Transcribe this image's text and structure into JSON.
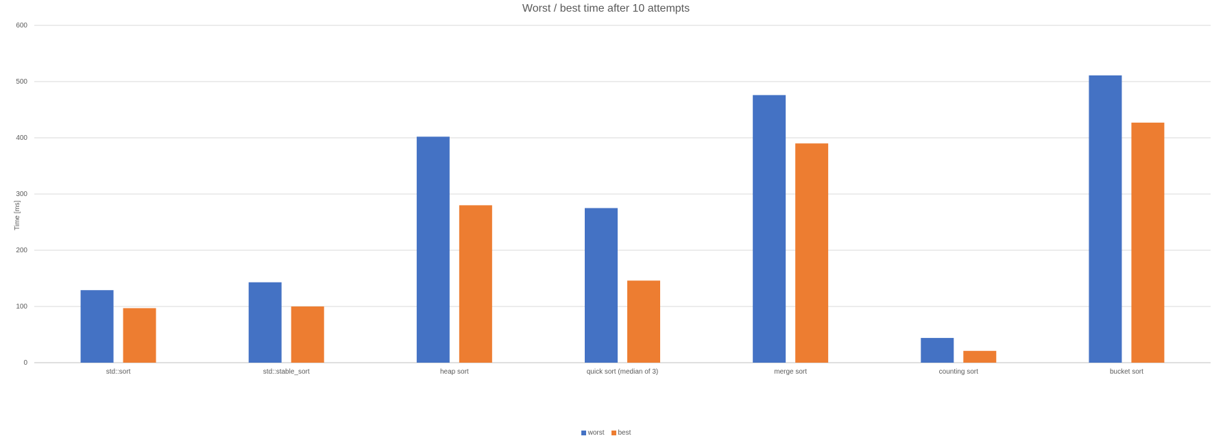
{
  "chart_data": {
    "type": "bar",
    "title": "Worst / best time after 10 attempts",
    "ylabel": "Time [ms]",
    "xlabel": "",
    "ylim": [
      0,
      600
    ],
    "yticks": [
      0,
      100,
      200,
      300,
      400,
      500,
      600
    ],
    "grid": true,
    "legend_position": "bottom",
    "categories": [
      "std::sort",
      "std::stable_sort",
      "heap sort",
      "quick sort (median of 3)",
      "merge sort",
      "counting sort",
      "bucket sort"
    ],
    "series": [
      {
        "name": "worst",
        "color": "#4472C4",
        "values": [
          129,
          143,
          402,
          275,
          476,
          44,
          511
        ]
      },
      {
        "name": "best",
        "color": "#ED7D31",
        "values": [
          97,
          100,
          280,
          146,
          390,
          21,
          427
        ]
      }
    ]
  }
}
